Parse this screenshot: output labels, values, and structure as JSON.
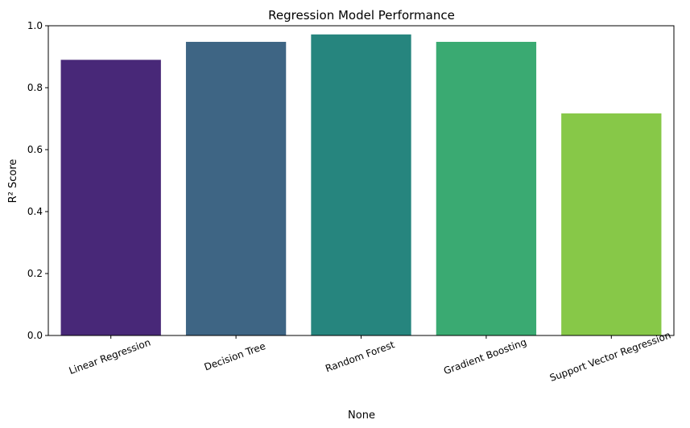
{
  "chart_data": {
    "type": "bar",
    "title": "Regression Model Performance",
    "xlabel": "None",
    "ylabel": "R² Score",
    "categories": [
      "Linear Regression",
      "Decision Tree",
      "Random Forest",
      "Gradient Boosting",
      "Support Vector Regression"
    ],
    "values": [
      0.89,
      0.948,
      0.972,
      0.948,
      0.717
    ],
    "colors": [
      "#482878",
      "#3e6584",
      "#26857e",
      "#3aaa72",
      "#87c848"
    ],
    "ylim": [
      0,
      1
    ],
    "yticks": [
      "0.0",
      "0.2",
      "0.4",
      "0.6",
      "0.8",
      "1.0"
    ],
    "grid": false,
    "legend": "none"
  }
}
